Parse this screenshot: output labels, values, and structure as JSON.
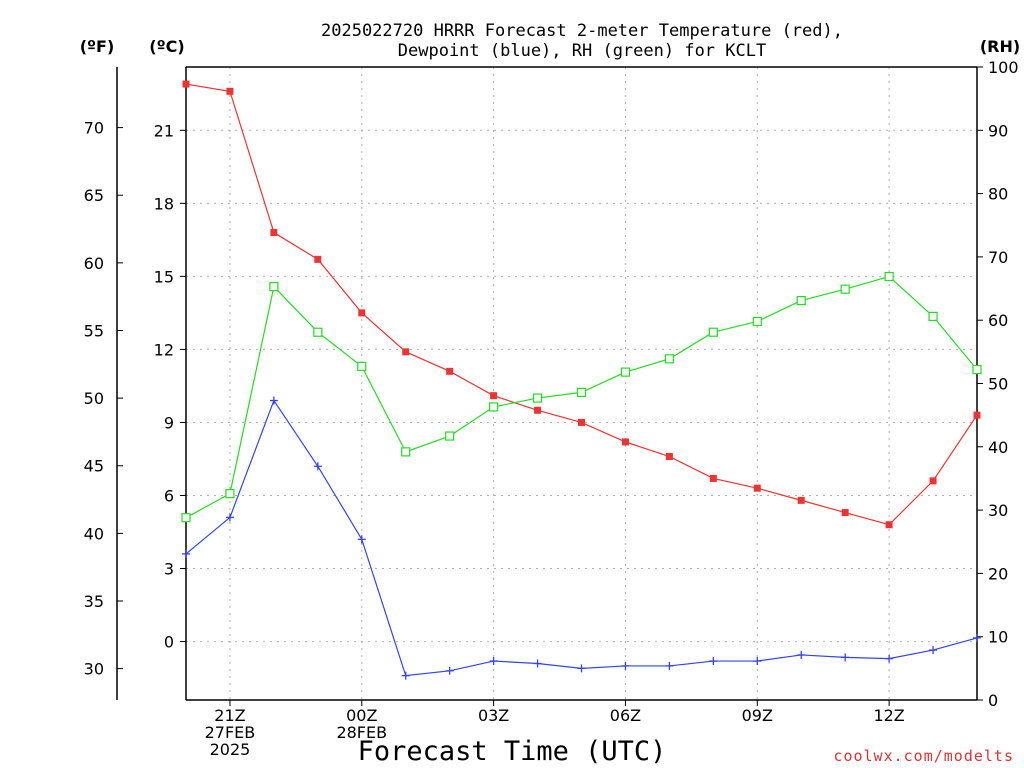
{
  "title_line1": "2025022720 HRRR Forecast 2-meter Temperature (red),",
  "title_line2": "Dewpoint (blue), RH (green) for KCLT",
  "unit_f": "(ºF)",
  "unit_c": "(ºC)",
  "unit_rh": "(RH)",
  "xlabel": "Forecast Time (UTC)",
  "credit": "coolwx.com/modelts",
  "colors": {
    "temperature": "#ee3333",
    "dewpoint": "#3344ee",
    "rh": "#22dd22",
    "credit": "#dd3333",
    "grid": "#b0b0b0"
  },
  "chart_data": {
    "type": "line",
    "x_unit": "forecast hour",
    "x": [
      0,
      1,
      2,
      3,
      4,
      5,
      6,
      7,
      8,
      9,
      10,
      11,
      12,
      13,
      14,
      15,
      16,
      17,
      18
    ],
    "x_ticks": [
      {
        "x": 1,
        "lines": [
          "21Z",
          "27FEB",
          "2025"
        ]
      },
      {
        "x": 4,
        "lines": [
          "00Z",
          "28FEB"
        ]
      },
      {
        "x": 7,
        "lines": [
          "03Z"
        ]
      },
      {
        "x": 10,
        "lines": [
          "06Z"
        ]
      },
      {
        "x": 13,
        "lines": [
          "09Z"
        ]
      },
      {
        "x": 16,
        "lines": [
          "12Z"
        ]
      }
    ],
    "y_left_c": {
      "label": "(ºC)",
      "range": [
        -2.4,
        23.6
      ],
      "ticks": [
        0,
        3,
        6,
        9,
        12,
        15,
        18,
        21
      ]
    },
    "y_left_f": {
      "label": "(ºF)",
      "ticks": [
        30,
        35,
        40,
        45,
        50,
        55,
        60,
        65,
        70
      ]
    },
    "y_right_rh": {
      "label": "(RH)",
      "range": [
        0,
        100
      ],
      "ticks": [
        0,
        10,
        20,
        30,
        40,
        50,
        60,
        70,
        80,
        90,
        100
      ]
    },
    "grid": true,
    "series": [
      {
        "name": "Temperature",
        "axis": "c",
        "marker": "filled-square",
        "values": [
          22.9,
          22.6,
          16.8,
          15.7,
          13.5,
          11.9,
          11.1,
          10.1,
          9.5,
          9.0,
          8.2,
          7.6,
          6.7,
          6.3,
          5.8,
          5.3,
          4.8,
          6.6,
          9.3
        ]
      },
      {
        "name": "Dewpoint",
        "axis": "c",
        "marker": "plus",
        "values": [
          3.6,
          5.1,
          9.9,
          7.2,
          4.2,
          -1.4,
          -1.2,
          -0.8,
          -0.9,
          -1.1,
          -1.0,
          -1.0,
          -0.8,
          -0.8,
          -0.55,
          -0.65,
          -0.7,
          -0.35,
          0.15
        ]
      },
      {
        "name": "RH",
        "axis": "rh",
        "marker": "open-square",
        "values": [
          28.8,
          32.6,
          65.3,
          58.1,
          52.7,
          39.2,
          41.7,
          46.3,
          47.7,
          48.6,
          51.8,
          53.9,
          58.1,
          59.8,
          63.1,
          64.9,
          66.9,
          60.6,
          52.2
        ]
      }
    ]
  }
}
